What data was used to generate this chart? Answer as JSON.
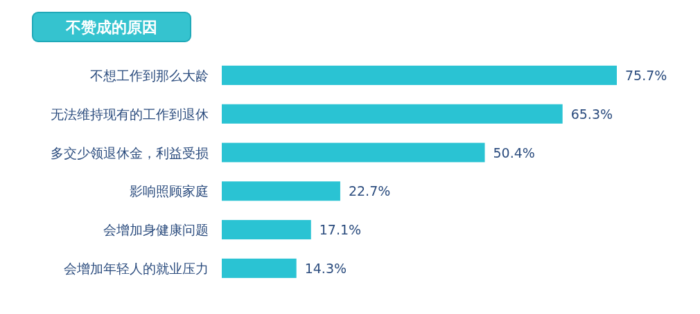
{
  "chart_data": {
    "type": "bar",
    "orientation": "horizontal",
    "title": "不赞成的原因",
    "categories": [
      "不想工作到那么大龄",
      "无法维持现有的工作到退休",
      "多交少领退休金，利益受损",
      "影响照顾家庭",
      "会增加身健康问题",
      "会增加年轻人的就业压力"
    ],
    "values": [
      75.7,
      65.3,
      50.4,
      22.7,
      17.1,
      14.3
    ],
    "value_labels": [
      "75.7%",
      "65.3%",
      "50.4%",
      "22.7%",
      "17.1%",
      "14.3%"
    ],
    "color": "#2ac3d3"
  }
}
